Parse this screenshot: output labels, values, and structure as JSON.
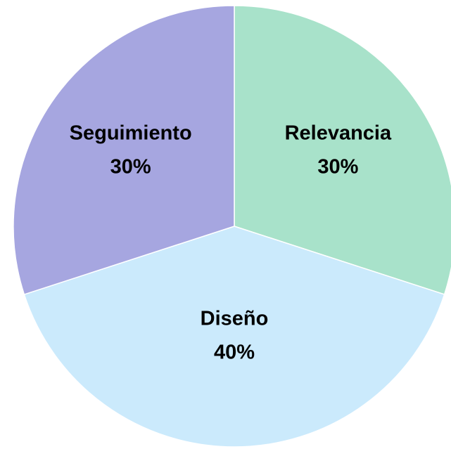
{
  "chart_data": {
    "type": "pie",
    "categories": [
      "Relevancia",
      "Diseño",
      "Seguimiento"
    ],
    "values": [
      30,
      40,
      30
    ],
    "value_labels": [
      "30%",
      "40%",
      "30%"
    ],
    "colors": [
      "#a8e2ca",
      "#cbeafc",
      "#a6a6e0"
    ]
  }
}
